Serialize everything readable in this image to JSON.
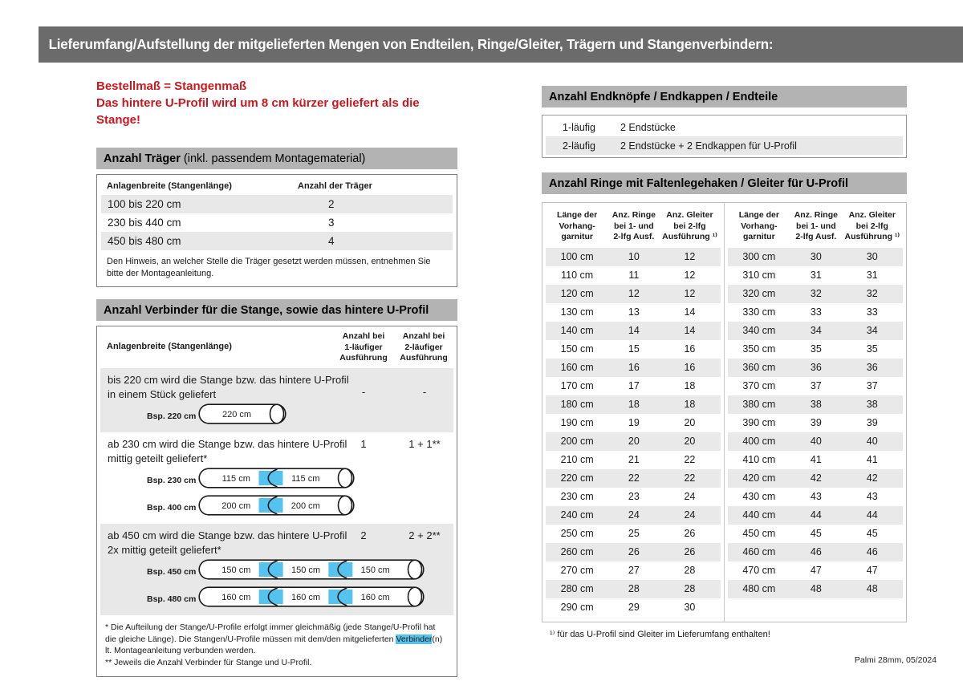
{
  "page": {
    "title": "Lieferumfang/Aufstellung der mitgelieferten Mengen von Endteilen, Ringe/Gleiter, Trägern und Stangenverbindern:",
    "footer": "Palmi 28mm, 05/2024"
  },
  "colors": {
    "accent_red": "#cb171e",
    "title_bar_gray": "#6b6b6b",
    "section_header_gray": "#b3b3b3",
    "row_stripe_gray": "#e8e8e8",
    "connector_blue": "#55c3ef"
  },
  "notice": {
    "line1": "Bestellmaß = Stangenmaß",
    "line2": "Das hintere U-Profil wird um 8 cm kürzer geliefert als die Stange!"
  },
  "traeger": {
    "title_bold": "Anzahl Träger",
    "title_rest": " (inkl. passendem Montagematerial)",
    "col1": "Anlagenbreite (Stangenlänge)",
    "col2": "Anzahl der Träger",
    "rows": [
      [
        "100 bis 220 cm",
        "2"
      ],
      [
        "230 bis 440 cm",
        "3"
      ],
      [
        "450 bis 480 cm",
        "4"
      ]
    ],
    "note": "Den Hinweis, an welcher Stelle die Träger gesetzt werden müssen, entnehmen Sie bitte der Montageanleitung."
  },
  "verbinder": {
    "title": "Anzahl Verbinder für die Stange, sowie das hintere U-Profil",
    "col1": "Anlagenbreite (Stangenlänge)",
    "col2": "Anzahl bei\n1-läufiger\nAusführung",
    "col3": "Anzahl bei\n2-läufiger\nAusführung",
    "rows": [
      {
        "text_lines": [
          "bis 220 cm wird die Stange bzw. das hintere U-Profil",
          "in einem Stück geliefert"
        ],
        "val1": "-",
        "val2": "-",
        "rods": [
          {
            "label": "Bsp. 220 cm",
            "segments": [
              "220 cm"
            ]
          }
        ]
      },
      {
        "text_lines": [
          "ab 230 cm wird die Stange bzw. das hintere U-Profil",
          "mittig geteilt geliefert*"
        ],
        "val1": "1",
        "val2": "1 + 1**",
        "rods": [
          {
            "label": "Bsp. 230 cm",
            "segments": [
              "115 cm",
              "115 cm"
            ]
          },
          {
            "label": "Bsp. 400 cm",
            "segments": [
              "200 cm",
              "200 cm"
            ]
          }
        ]
      },
      {
        "text_lines": [
          "ab 450 cm wird die Stange bzw. das hintere U-Profil",
          "2x mittig geteilt geliefert*"
        ],
        "val1": "2",
        "val2": "2 + 2**",
        "rods": [
          {
            "label": "Bsp. 450 cm",
            "segments": [
              "150 cm",
              "150 cm",
              "150 cm"
            ]
          },
          {
            "label": "Bsp. 480 cm",
            "segments": [
              "160 cm",
              "160 cm",
              "160 cm"
            ]
          }
        ]
      }
    ],
    "footnote1_pre": "* Die Aufteilung der Stange/U-Profile erfolgt immer gleichmäßig (jede Stange/U-Profil hat die gleiche Länge). Die Stangen/U-Profile müssen mit dem/den mitgelieferten ",
    "footnote1_highlight": "Verbinder",
    "footnote1_post": "(n) lt. Montageanleitung verbunden werden.",
    "footnote2": "** Jeweils die Anzahl Verbinder für Stange und U-Profil."
  },
  "endteile": {
    "title": "Anzahl Endknöpfe / Endkappen / Endteile",
    "rows": [
      [
        "1-läufig",
        "2 Endstücke"
      ],
      [
        "2-läufig",
        "2 Endstücke + 2 Endkappen für U-Profil"
      ]
    ]
  },
  "ringe": {
    "title": "Anzahl Ringe mit Faltenlegehaken / Gleiter für U-Profil",
    "col_headers": [
      "Länge der\nVorhang-\ngarnitur",
      "Anz. Ringe\nbei 1- und\n2-lfg Ausf.",
      "Anz. Gleiter\nbei 2-lfg\nAusführung ¹⁾"
    ],
    "left_rows": [
      [
        "100 cm",
        "10",
        "12"
      ],
      [
        "110 cm",
        "11",
        "12"
      ],
      [
        "120 cm",
        "12",
        "12"
      ],
      [
        "130 cm",
        "13",
        "14"
      ],
      [
        "140 cm",
        "14",
        "14"
      ],
      [
        "150 cm",
        "15",
        "16"
      ],
      [
        "160 cm",
        "16",
        "16"
      ],
      [
        "170 cm",
        "17",
        "18"
      ],
      [
        "180 cm",
        "18",
        "18"
      ],
      [
        "190 cm",
        "19",
        "20"
      ],
      [
        "200 cm",
        "20",
        "20"
      ],
      [
        "210 cm",
        "21",
        "22"
      ],
      [
        "220 cm",
        "22",
        "22"
      ],
      [
        "230 cm",
        "23",
        "24"
      ],
      [
        "240 cm",
        "24",
        "24"
      ],
      [
        "250 cm",
        "25",
        "26"
      ],
      [
        "260 cm",
        "26",
        "26"
      ],
      [
        "270 cm",
        "27",
        "28"
      ],
      [
        "280 cm",
        "28",
        "28"
      ],
      [
        "290 cm",
        "29",
        "30"
      ]
    ],
    "right_rows": [
      [
        "300 cm",
        "30",
        "30"
      ],
      [
        "310 cm",
        "31",
        "31"
      ],
      [
        "320 cm",
        "32",
        "32"
      ],
      [
        "330 cm",
        "33",
        "33"
      ],
      [
        "340 cm",
        "34",
        "34"
      ],
      [
        "350 cm",
        "35",
        "35"
      ],
      [
        "360 cm",
        "36",
        "36"
      ],
      [
        "370 cm",
        "37",
        "37"
      ],
      [
        "380 cm",
        "38",
        "38"
      ],
      [
        "390 cm",
        "39",
        "39"
      ],
      [
        "400 cm",
        "40",
        "40"
      ],
      [
        "410 cm",
        "41",
        "41"
      ],
      [
        "420 cm",
        "42",
        "42"
      ],
      [
        "430 cm",
        "43",
        "43"
      ],
      [
        "440 cm",
        "44",
        "44"
      ],
      [
        "450 cm",
        "45",
        "45"
      ],
      [
        "460 cm",
        "46",
        "46"
      ],
      [
        "470 cm",
        "47",
        "47"
      ],
      [
        "480 cm",
        "48",
        "48"
      ]
    ],
    "footnote": "¹⁾ für das U-Profil sind Gleiter im Lieferumfang enthalten!"
  }
}
